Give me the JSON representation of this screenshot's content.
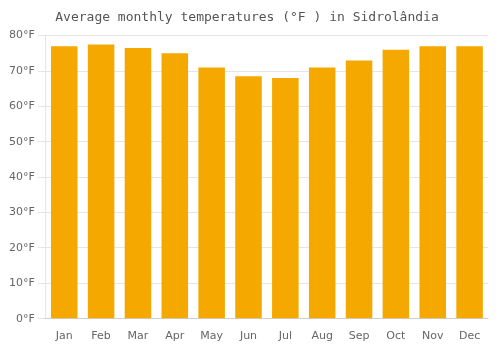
{
  "chart_data": {
    "type": "bar",
    "title": "Average monthly temperatures (°F ) in Sidrolândia",
    "categories": [
      "Jan",
      "Feb",
      "Mar",
      "Apr",
      "May",
      "Jun",
      "Jul",
      "Aug",
      "Sep",
      "Oct",
      "Nov",
      "Dec"
    ],
    "values": [
      77,
      77.5,
      76.5,
      75,
      71,
      68.5,
      68,
      71,
      73,
      76,
      77,
      77
    ],
    "color": "#F5A800",
    "ylim": [
      0,
      80
    ],
    "yticks": [
      {
        "value": 0,
        "label": "0°F"
      },
      {
        "value": 10,
        "label": "10°F"
      },
      {
        "value": 20,
        "label": "20°F"
      },
      {
        "value": 30,
        "label": "30°F"
      },
      {
        "value": 40,
        "label": "40°F"
      },
      {
        "value": 50,
        "label": "50°F"
      },
      {
        "value": 60,
        "label": "60°F"
      },
      {
        "value": 70,
        "label": "70°F"
      },
      {
        "value": 80,
        "label": "80°F"
      }
    ],
    "grid": true
  }
}
